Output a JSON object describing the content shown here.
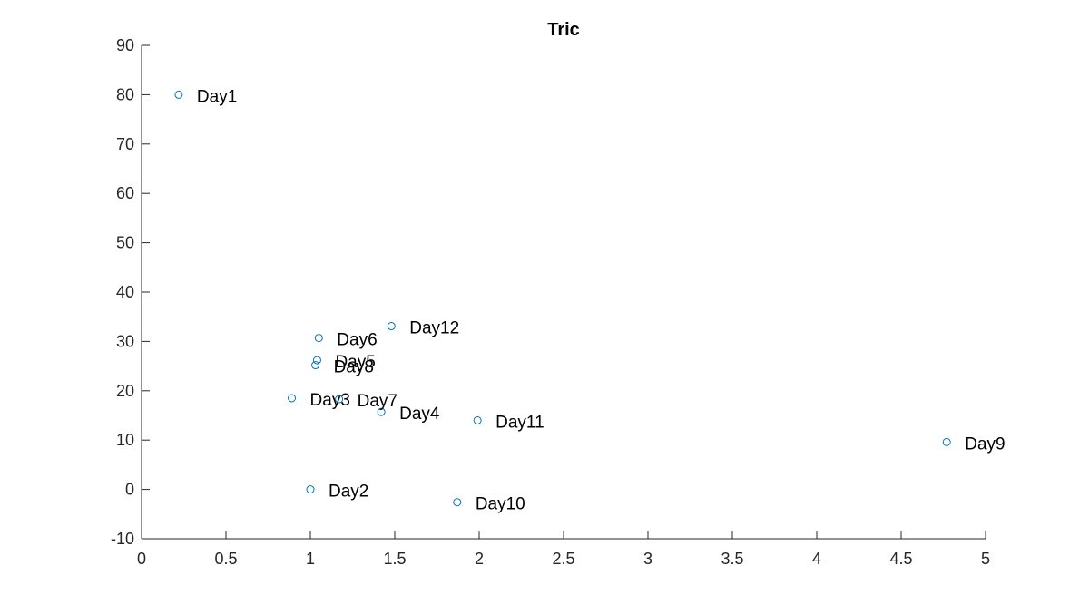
{
  "chart_data": {
    "type": "scatter",
    "title": "Tric",
    "xlabel": "",
    "ylabel": "",
    "xlim": [
      0,
      5
    ],
    "ylim": [
      -10,
      90
    ],
    "xticks": [
      "0",
      "0.5",
      "1",
      "1.5",
      "2",
      "2.5",
      "3",
      "3.5",
      "4",
      "4.5",
      "5"
    ],
    "yticks": [
      "-10",
      "0",
      "10",
      "20",
      "30",
      "40",
      "50",
      "60",
      "70",
      "80",
      "90"
    ],
    "grid": false,
    "marker": "circle-open",
    "marker_color": "#0072BD",
    "points": [
      {
        "label": "Day1",
        "x": 0.22,
        "y": 80.0
      },
      {
        "label": "Day2",
        "x": 1.0,
        "y": 0.0
      },
      {
        "label": "Day3",
        "x": 0.89,
        "y": 18.5
      },
      {
        "label": "Day4",
        "x": 1.42,
        "y": 15.7
      },
      {
        "label": "Day5",
        "x": 1.04,
        "y": 26.2
      },
      {
        "label": "Day6",
        "x": 1.05,
        "y": 30.7
      },
      {
        "label": "Day7",
        "x": 1.17,
        "y": 18.3
      },
      {
        "label": "Day8",
        "x": 1.03,
        "y": 25.2
      },
      {
        "label": "Day9",
        "x": 4.77,
        "y": 9.6
      },
      {
        "label": "Day10",
        "x": 1.87,
        "y": -2.6
      },
      {
        "label": "Day11",
        "x": 1.99,
        "y": 14.0
      },
      {
        "label": "Day12",
        "x": 1.48,
        "y": 33.1
      }
    ]
  }
}
